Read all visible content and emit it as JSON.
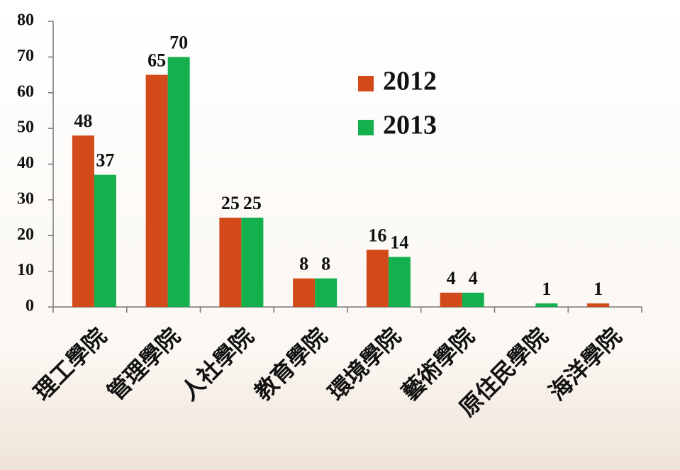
{
  "chart_data": {
    "type": "bar",
    "categories": [
      "理工學院",
      "管理學院",
      "人社學院",
      "教育學院",
      "環境學院",
      "藝術學院",
      "原住民學院",
      "海洋學院"
    ],
    "series": [
      {
        "name": "2012",
        "color": "#d24a1a",
        "values": [
          48,
          65,
          25,
          8,
          16,
          4,
          null,
          1
        ]
      },
      {
        "name": "2013",
        "color": "#14b04e",
        "values": [
          37,
          70,
          25,
          8,
          14,
          4,
          1,
          null
        ]
      }
    ],
    "ylim": [
      0,
      80
    ],
    "yticks": [
      0,
      10,
      20,
      30,
      40,
      50,
      60,
      70,
      80
    ],
    "legend": "top-right"
  }
}
